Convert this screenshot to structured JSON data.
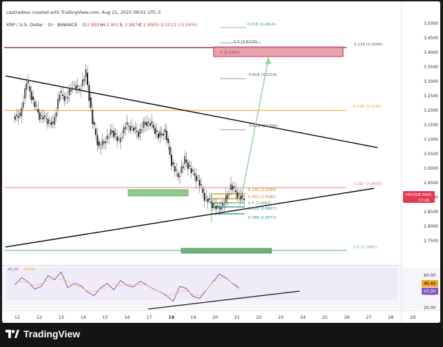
{
  "header": {
    "credit": "castradess created with TradingView.com, Aug 21, 2025 08:02 UTC-5",
    "symbol_line": "XRP / U.S. Dollar · 1h · BINANCE",
    "ohlc": [
      {
        "k": "O",
        "v": "2.8916"
      },
      {
        "k": "H",
        "v": "2.9017"
      },
      {
        "k": "L",
        "v": "2.8874"
      },
      {
        "k": "C",
        "v": "2.8905"
      }
    ],
    "change": "-0.0012 (-0.04%)"
  },
  "colors": {
    "up": "#26a69a",
    "down": "#ef5350",
    "trendline": "#000000",
    "fib_top": "#c2185b",
    "orange": "#f5a623",
    "pink_line": "#e57373",
    "target_box": "#e8a0a8",
    "green_box": "#8bc58b",
    "teal": "#80cbc4",
    "rsi": "#7e57c2",
    "projection": "#9ccc9c"
  },
  "price_axis": {
    "labels": [
      "3.5000",
      "3.4500",
      "3.4000",
      "3.3500",
      "3.3000",
      "3.2500",
      "3.2000",
      "3.1500",
      "3.1000",
      "3.0500",
      "3.0000",
      "2.9500",
      "2.9000",
      "2.8500",
      "2.8000",
      "2.7500"
    ],
    "current_tag": "XRPUSD",
    "current_price": "2.8905",
    "countdown": "57:06"
  },
  "time_axis": {
    "labels": [
      "11",
      "12",
      "13",
      "14",
      "15",
      "16",
      "17",
      "18",
      "19",
      "20",
      "21",
      "22",
      "23",
      "24",
      "25",
      "26",
      "27",
      "28",
      "29"
    ],
    "bold_label": "18"
  },
  "rsi_panel": {
    "label": "43.20",
    "label2": "53.40",
    "axis_labels": [
      "60.00",
      "40.00",
      "20.00"
    ],
    "tags": [
      "46.40",
      "43.20"
    ]
  },
  "fib_labels": {
    "f618_top": "0.618 (3.4814)",
    "f05_upper": "0.5 (3.4228)",
    "f1": "1 (3.7337)",
    "f118": "0.118 (3.4204)",
    "f618_mid": "0.618 (3.3214)",
    "f236": "0.236 (3.2195)",
    "f618_low": "0.618 (3.1554)",
    "f382_pink": "0.382 (2.9666)",
    "a236": "0.236 (2.9589)",
    "a382": "0.382 (2.9365)",
    "a05": "0.5 (2.9062)",
    "a618": "0.618 (2.8867)",
    "a786": "0.786 (2.8572)",
    "f05_bottom": "0.5 (2.7665)"
  },
  "chart_data": {
    "type": "candlestick",
    "title": "XRP / U.S. Dollar · 1h · BINANCE",
    "ylim": [
      2.72,
      3.52
    ],
    "x_range": [
      "11",
      "29"
    ],
    "series": [
      {
        "name": "XRPUSD",
        "x": [
          10.9,
          11.2,
          11.5,
          11.8,
          12.1,
          12.4,
          12.7,
          13.0,
          13.3,
          13.6,
          13.9,
          14.2,
          14.5,
          14.8,
          15.1,
          15.4,
          15.7,
          16.0,
          16.3,
          16.6,
          16.9,
          17.2,
          17.5,
          17.8,
          18.1,
          18.4,
          18.7,
          19.0,
          19.3,
          19.6,
          19.9,
          20.2,
          20.5,
          20.8,
          21.1
        ],
        "values": [
          3.18,
          3.3,
          3.23,
          3.18,
          3.17,
          3.15,
          3.26,
          3.24,
          3.29,
          3.27,
          3.33,
          3.16,
          3.07,
          3.1,
          3.13,
          3.09,
          3.15,
          3.14,
          3.12,
          3.16,
          3.15,
          3.11,
          3.13,
          3.02,
          2.97,
          3.03,
          2.99,
          2.96,
          2.9,
          2.88,
          2.86,
          2.88,
          2.94,
          2.91,
          2.89
        ]
      }
    ],
    "rsi": {
      "name": "RSI",
      "values": [
        48,
        58,
        52,
        42,
        46,
        61,
        55,
        66,
        44,
        50,
        47,
        38,
        33,
        44,
        50,
        41,
        54,
        47,
        45,
        53,
        48,
        42,
        38,
        33,
        25,
        46,
        43,
        32,
        29,
        40,
        52,
        63,
        58,
        50,
        43.2
      ],
      "ylim": [
        20,
        70
      ]
    }
  }
}
